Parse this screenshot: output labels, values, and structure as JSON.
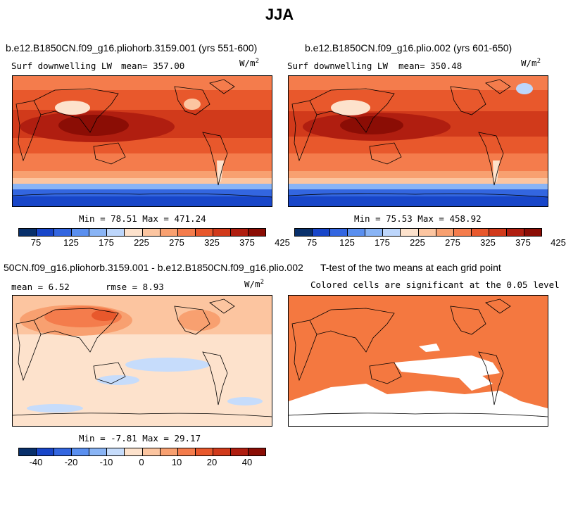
{
  "figure_title": "JJA",
  "panels": [
    {
      "title": "b.e12.B1850CN.f09_g16.pliohorb.3159.001 (yrs 551-600)",
      "variable": "Surf downwelling LW",
      "mean_text": "mean= 357.00",
      "units": "W/m",
      "units_exp": "2",
      "minmax": "Min =  78.51 Max = 471.24"
    },
    {
      "title": "b.e12.B1850CN.f09_g16.plio.002 (yrs 601-650)",
      "variable": "Surf downwelling LW",
      "mean_text": "mean= 350.48",
      "units": "W/m",
      "units_exp": "2",
      "minmax": "Min =  75.53 Max = 458.92"
    },
    {
      "title": "50CN.f09_g16.pliohorb.3159.001 - b.e12.B1850CN.f09_g16.plio.002",
      "mean_text": "mean =   6.52",
      "rmse_text": "rmse =   8.93",
      "units": "W/m",
      "units_exp": "2",
      "minmax": "Min =  -7.81 Max =  29.17"
    },
    {
      "title": "T-test of the two means at each grid point",
      "subtitle": "Colored cells are significant at the 0.05 level"
    }
  ],
  "colorbar_abs": {
    "labels": [
      "75",
      "125",
      "175",
      "225",
      "275",
      "325",
      "375",
      "425"
    ],
    "colors": [
      "#08306b",
      "#1846c9",
      "#3366e0",
      "#5a8fef",
      "#89b4f5",
      "#bdd6fb",
      "#fde2cc",
      "#fcc5a0",
      "#f8a070",
      "#f47c4c",
      "#e8582c",
      "#d13a1b",
      "#b01e10",
      "#8b0d05"
    ]
  },
  "colorbar_diff": {
    "labels": [
      "-40",
      "-20",
      "-10",
      "0",
      "10",
      "20",
      "40"
    ],
    "colors": [
      "#08306b",
      "#1846c9",
      "#3366e0",
      "#5a8fef",
      "#89b4f5",
      "#c6dcfb",
      "#fde2cc",
      "#fcc5a0",
      "#f8a070",
      "#f47c4c",
      "#e8582c",
      "#d13a1b",
      "#b01e10",
      "#8b0d05"
    ]
  },
  "colors": {
    "ttest_fill": "#f47840",
    "coast": "#000000"
  }
}
